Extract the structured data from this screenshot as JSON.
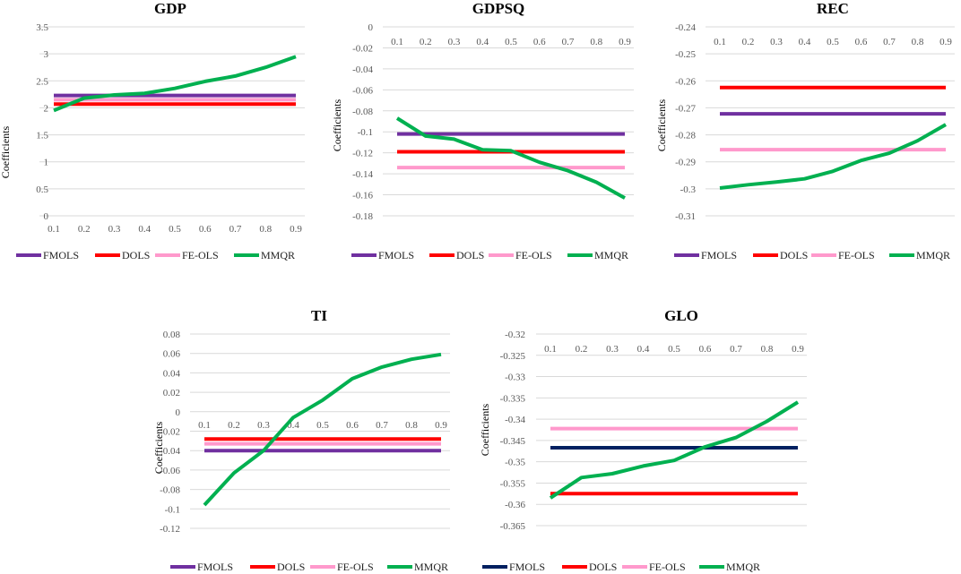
{
  "chart_data": [
    {
      "type": "line",
      "title": "GDP",
      "xlabel": "",
      "ylabel": "Coefficients",
      "categories": [
        "0.1",
        "0.2",
        "0.3",
        "0.4",
        "0.5",
        "0.6",
        "0.7",
        "0.8",
        "0.9"
      ],
      "y_ticks": [
        "0",
        "0.5",
        "1",
        "1.5",
        "2",
        "2.5",
        "3",
        "3.5"
      ],
      "ylim": [
        0,
        3.5
      ],
      "x_axis_at": "bottom",
      "series": [
        {
          "name": "FMOLS",
          "color": "#7030A0",
          "values": [
            2.23,
            2.23,
            2.23,
            2.23,
            2.23,
            2.23,
            2.23,
            2.23,
            2.23
          ]
        },
        {
          "name": "DOLS",
          "color": "#FF0000",
          "values": [
            2.07,
            2.07,
            2.07,
            2.07,
            2.07,
            2.07,
            2.07,
            2.07,
            2.07
          ]
        },
        {
          "name": "FE-OLS",
          "color": "#FF99CC",
          "values": [
            2.15,
            2.15,
            2.15,
            2.15,
            2.15,
            2.15,
            2.15,
            2.15,
            2.15
          ]
        },
        {
          "name": "MMQR",
          "color": "#00B050",
          "values": [
            1.95,
            2.18,
            2.24,
            2.27,
            2.36,
            2.49,
            2.59,
            2.75,
            2.95
          ]
        }
      ]
    },
    {
      "type": "line",
      "title": "GDPSQ",
      "xlabel": "",
      "ylabel": "Coefficients",
      "categories": [
        "0.1",
        "0.2",
        "0.3",
        "0.4",
        "0.5",
        "0.6",
        "0.7",
        "0.8",
        "0.9"
      ],
      "y_ticks": [
        "0",
        "-0.02",
        "-0.04",
        "-0.06",
        "-0.08",
        "-0.1",
        "-0.12",
        "-0.14",
        "-0.16",
        "-0.18"
      ],
      "ylim": [
        -0.18,
        0
      ],
      "x_axis_at": "top",
      "series": [
        {
          "name": "FMOLS",
          "color": "#7030A0",
          "values": [
            -0.102,
            -0.102,
            -0.102,
            -0.102,
            -0.102,
            -0.102,
            -0.102,
            -0.102,
            -0.102
          ]
        },
        {
          "name": "DOLS",
          "color": "#FF0000",
          "values": [
            -0.119,
            -0.119,
            -0.119,
            -0.119,
            -0.119,
            -0.119,
            -0.119,
            -0.119,
            -0.119
          ]
        },
        {
          "name": "FE-OLS",
          "color": "#FF99CC",
          "values": [
            -0.134,
            -0.134,
            -0.134,
            -0.134,
            -0.134,
            -0.134,
            -0.134,
            -0.134,
            -0.134
          ]
        },
        {
          "name": "MMQR",
          "color": "#00B050",
          "values": [
            -0.087,
            -0.104,
            -0.107,
            -0.117,
            -0.118,
            -0.129,
            -0.137,
            -0.148,
            -0.163
          ]
        }
      ]
    },
    {
      "type": "line",
      "title": "REC",
      "xlabel": "",
      "ylabel": "Coefficients",
      "categories": [
        "0.1",
        "0.2",
        "0.3",
        "0.4",
        "0.5",
        "0.6",
        "0.7",
        "0.8",
        "0.9"
      ],
      "y_ticks": [
        "-0.24",
        "-0.25",
        "-0.26",
        "-0.27",
        "-0.28",
        "-0.29",
        "-0.3",
        "-0.31"
      ],
      "ylim": [
        -0.31,
        -0.24
      ],
      "x_axis_at": "top",
      "series": [
        {
          "name": "FMOLS",
          "color": "#7030A0",
          "values": [
            -0.2722,
            -0.2722,
            -0.2722,
            -0.2722,
            -0.2722,
            -0.2722,
            -0.2722,
            -0.2722,
            -0.2722
          ]
        },
        {
          "name": "DOLS",
          "color": "#FF0000",
          "values": [
            -0.2625,
            -0.2625,
            -0.2625,
            -0.2625,
            -0.2625,
            -0.2625,
            -0.2625,
            -0.2625,
            -0.2625
          ]
        },
        {
          "name": "FE-OLS",
          "color": "#FF99CC",
          "values": [
            -0.2855,
            -0.2855,
            -0.2855,
            -0.2855,
            -0.2855,
            -0.2855,
            -0.2855,
            -0.2855,
            -0.2855
          ]
        },
        {
          "name": "MMQR",
          "color": "#00B050",
          "values": [
            -0.2997,
            -0.2985,
            -0.2975,
            -0.2963,
            -0.2935,
            -0.2895,
            -0.2868,
            -0.2822,
            -0.2762
          ]
        }
      ]
    },
    {
      "type": "line",
      "title": "TI",
      "xlabel": "",
      "ylabel": "Coefficients",
      "categories": [
        "0.1",
        "0.2",
        "0.3",
        "0.4",
        "0.5",
        "0.6",
        "0.7",
        "0.8",
        "0.9"
      ],
      "y_ticks": [
        "0.08",
        "0.06",
        "0.04",
        "0.02",
        "0",
        "-0.02",
        "-0.04",
        "-0.06",
        "-0.08",
        "-0.1",
        "-0.12"
      ],
      "ylim": [
        -0.12,
        0.08
      ],
      "x_axis_at": "zero",
      "series": [
        {
          "name": "FMOLS",
          "color": "#7030A0",
          "values": [
            -0.04,
            -0.04,
            -0.04,
            -0.04,
            -0.04,
            -0.04,
            -0.04,
            -0.04,
            -0.04
          ]
        },
        {
          "name": "DOLS",
          "color": "#FF0000",
          "values": [
            -0.028,
            -0.028,
            -0.028,
            -0.028,
            -0.028,
            -0.028,
            -0.028,
            -0.028,
            -0.028
          ]
        },
        {
          "name": "FE-OLS",
          "color": "#FF99CC",
          "values": [
            -0.033,
            -0.033,
            -0.033,
            -0.033,
            -0.033,
            -0.033,
            -0.033,
            -0.033,
            -0.033
          ]
        },
        {
          "name": "MMQR",
          "color": "#00B050",
          "values": [
            -0.096,
            -0.063,
            -0.04,
            -0.006,
            0.012,
            0.034,
            0.046,
            0.054,
            0.059
          ]
        }
      ]
    },
    {
      "type": "line",
      "title": "GLO",
      "xlabel": "",
      "ylabel": "Coefficients",
      "categories": [
        "0.1",
        "0.2",
        "0.3",
        "0.4",
        "0.5",
        "0.6",
        "0.7",
        "0.8",
        "0.9"
      ],
      "y_ticks": [
        "-0.32",
        "-0.325",
        "-0.33",
        "-0.335",
        "-0.34",
        "-0.345",
        "-0.35",
        "-0.355",
        "-0.36",
        "-0.365"
      ],
      "ylim": [
        -0.365,
        -0.32
      ],
      "x_axis_at": "top",
      "series": [
        {
          "name": "FMOLS",
          "color": "#002060",
          "values": [
            -0.3467,
            -0.3467,
            -0.3467,
            -0.3467,
            -0.3467,
            -0.3467,
            -0.3467,
            -0.3467,
            -0.3467
          ]
        },
        {
          "name": "DOLS",
          "color": "#FF0000",
          "values": [
            -0.3575,
            -0.3575,
            -0.3575,
            -0.3575,
            -0.3575,
            -0.3575,
            -0.3575,
            -0.3575,
            -0.3575
          ]
        },
        {
          "name": "FE-OLS",
          "color": "#FF99CC",
          "values": [
            -0.3422,
            -0.3422,
            -0.3422,
            -0.3422,
            -0.3422,
            -0.3422,
            -0.3422,
            -0.3422,
            -0.3422
          ]
        },
        {
          "name": "MMQR",
          "color": "#00B050",
          "values": [
            -0.3585,
            -0.3537,
            -0.3528,
            -0.351,
            -0.3497,
            -0.3465,
            -0.3443,
            -0.3405,
            -0.336
          ]
        }
      ]
    }
  ]
}
